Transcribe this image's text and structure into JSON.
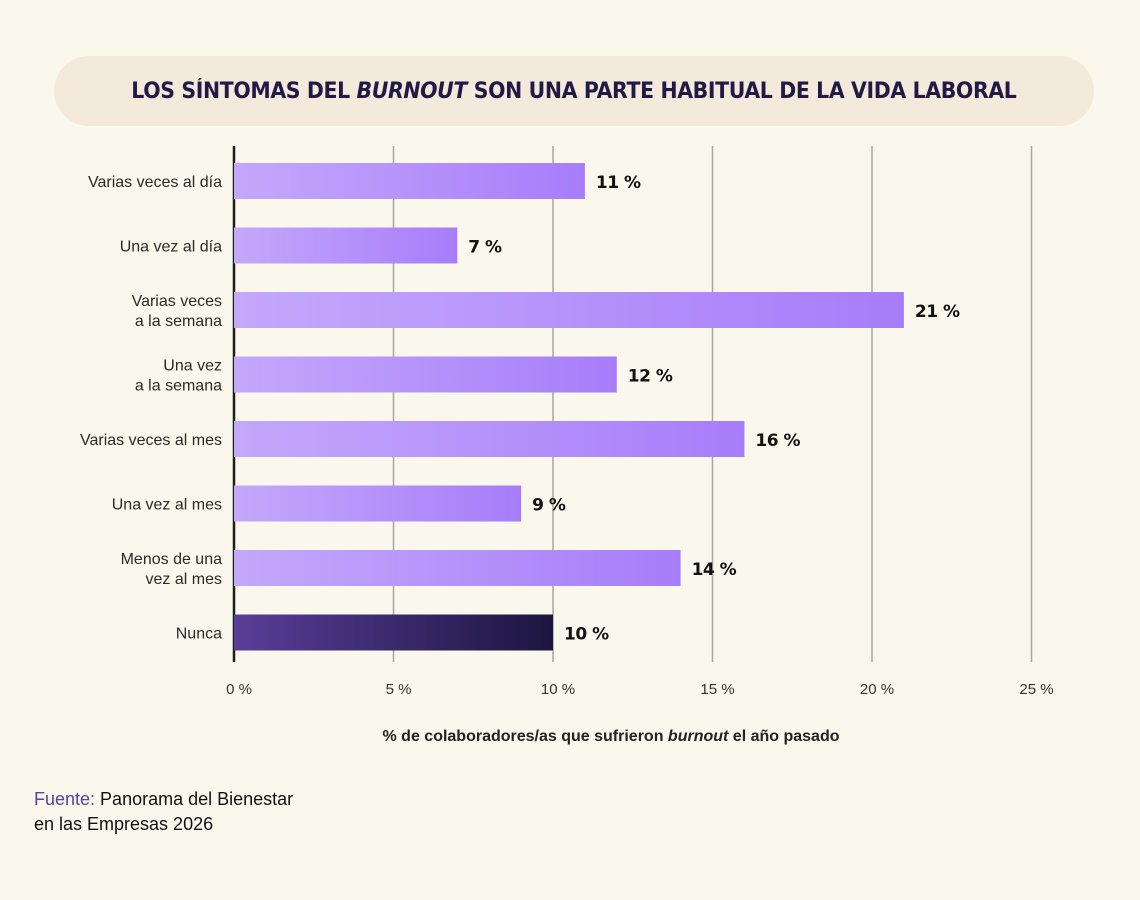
{
  "chart_data": {
    "type": "bar",
    "orientation": "horizontal",
    "title_parts": [
      "LOS SÍNTOMAS DEL ",
      "BURNOUT",
      " SON UNA PARTE HABITUAL DE LA VIDA LABORAL"
    ],
    "title": "LOS SÍNTOMAS DEL BURNOUT SON UNA PARTE HABITUAL DE LA VIDA LABORAL",
    "categories": [
      [
        "Varias veces al día"
      ],
      [
        "Una vez al día"
      ],
      [
        "Varias veces",
        "a la semana"
      ],
      [
        "Una vez",
        "a la semana"
      ],
      [
        "Varias veces al mes"
      ],
      [
        "Una vez al mes"
      ],
      [
        "Menos de una",
        "vez al mes"
      ],
      [
        "Nunca"
      ]
    ],
    "values": [
      11,
      7,
      21,
      12,
      16,
      9,
      14,
      10
    ],
    "value_labels": [
      "11 %",
      "7 %",
      "21 %",
      "12 %",
      "16 %",
      "9 %",
      "14 %",
      "10 %"
    ],
    "highlight_index": 7,
    "xlim": [
      0,
      25
    ],
    "xticks": [
      0,
      5,
      10,
      15,
      20,
      25
    ],
    "xtick_labels": [
      "0 %",
      "5 %",
      "10 %",
      "15 %",
      "20 %",
      "25 %"
    ],
    "xlabel_parts": [
      "% de colaboradores/as que sufrieron ",
      "burnout",
      " el año pasado"
    ],
    "xlabel": "% de colaboradores/as que sufrieron burnout el año pasado",
    "ylabel": "",
    "grid": "vertical",
    "legend": "none",
    "colors": {
      "bar_gradient": [
        "#c4a8fb",
        "#a77dfa"
      ],
      "highlight_gradient": [
        "#5a3d98",
        "#1c1640"
      ],
      "gridline": "#a9a69c",
      "axis": "#1d1d1d"
    }
  },
  "source": {
    "key": "Fuente:",
    "line1": " Panorama del Bienestar",
    "line2": "en las Empresas 2026"
  }
}
